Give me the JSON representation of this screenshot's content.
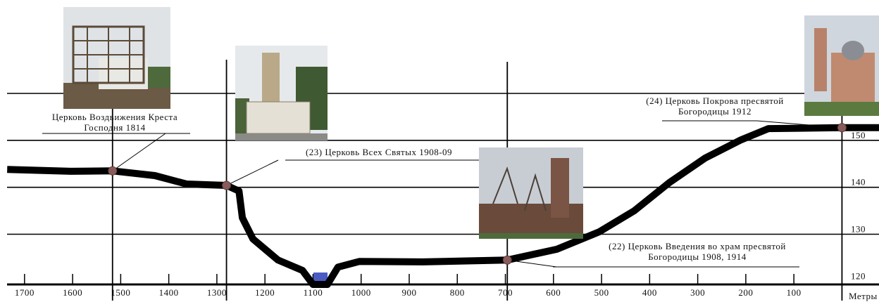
{
  "chart_data": {
    "type": "line",
    "x_label": "Метры",
    "x": [
      1736,
      1604,
      1517,
      1429,
      1363,
      1280,
      1254,
      1247,
      1225,
      1173,
      1122,
      1100,
      1070,
      1048,
      1004,
      872,
      696,
      593,
      505,
      432,
      359,
      285,
      212,
      153,
      0,
      -77
    ],
    "values": [
      143.8,
      143.4,
      143.5,
      142.5,
      140.7,
      140.4,
      139.2,
      133.5,
      129,
      124.5,
      122.3,
      119.3,
      119.3,
      123,
      124.2,
      124.1,
      124.5,
      126.8,
      130.5,
      135,
      141,
      146.2,
      150,
      152.5,
      152.7,
      152.7
    ],
    "color": "#000000",
    "xlim": [
      1751,
      -77
    ],
    "ylim": [
      119.3,
      160
    ],
    "xticks": [
      1700,
      1600,
      1500,
      1400,
      1300,
      1200,
      1100,
      1000,
      900,
      800,
      700,
      600,
      500,
      400,
      300,
      200,
      100
    ],
    "yticks": [
      120,
      130,
      140,
      150
    ],
    "grid": true,
    "annotations": [
      {
        "lines": [
          "Церковь Воздвижения Креста",
          "Господня 1814"
        ],
        "x": 1517,
        "y": 143.5
      },
      {
        "lines": [
          "(23) Церковь Всех Святых 1908-09"
        ],
        "x": 1280,
        "y": 140.4
      },
      {
        "lines": [
          "(22) Церковь Введения во храм пресвятой",
          "Богородицы 1908, 1914"
        ],
        "x": 696,
        "y": 124.5
      },
      {
        "lines": [
          "(24) Церковь Покрова пресвятой",
          "Богородицы 1912"
        ],
        "x": 0,
        "y": 152.7
      }
    ]
  }
}
